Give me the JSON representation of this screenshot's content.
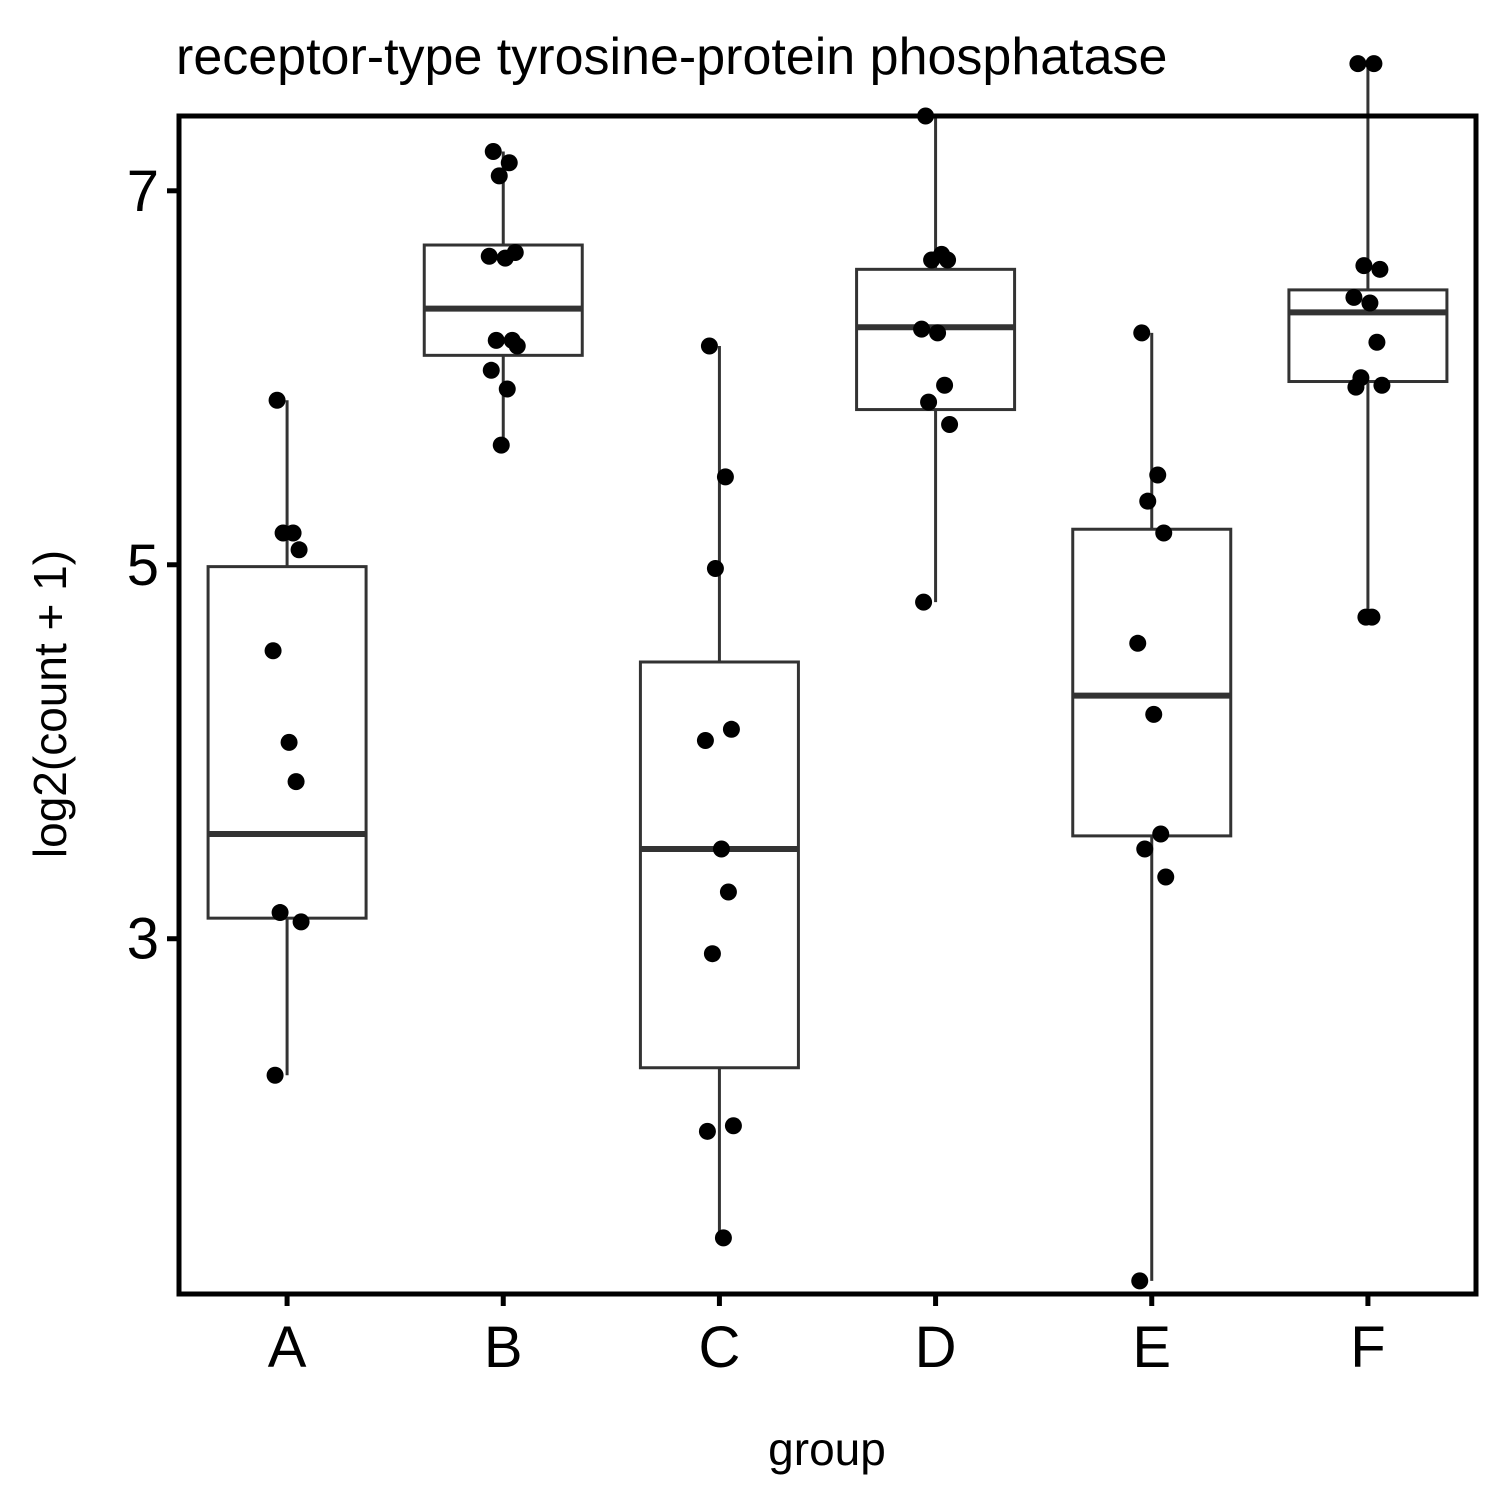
{
  "chart_data": {
    "type": "boxplot",
    "title": "receptor-type tyrosine-protein phosphatase",
    "xlabel": "group",
    "ylabel": "log2(count + 1)",
    "ylim": [
      1.1,
      7.4
    ],
    "yticks": [
      3,
      5,
      7
    ],
    "grid": false,
    "legend": "none",
    "categories": [
      "A",
      "B",
      "C",
      "D",
      "E",
      "F"
    ],
    "boxes": [
      {
        "group": "A",
        "lower_whisker": 2.27,
        "q1": 3.11,
        "median": 3.56,
        "q3": 4.99,
        "upper_whisker": 5.88
      },
      {
        "group": "B",
        "lower_whisker": 5.64,
        "q1": 6.12,
        "median": 6.37,
        "q3": 6.71,
        "upper_whisker": 7.21
      },
      {
        "group": "C",
        "lower_whisker": 1.4,
        "q1": 2.31,
        "median": 3.48,
        "q3": 4.48,
        "upper_whisker": 6.17
      },
      {
        "group": "D",
        "lower_whisker": 4.8,
        "q1": 5.83,
        "median": 6.27,
        "q3": 6.58,
        "upper_whisker": 7.4
      },
      {
        "group": "E",
        "lower_whisker": 1.17,
        "q1": 3.55,
        "median": 4.3,
        "q3": 5.19,
        "upper_whisker": 6.24
      },
      {
        "group": "F",
        "lower_whisker": 4.71,
        "q1": 5.98,
        "median": 6.35,
        "q3": 6.47,
        "upper_whisker": 7.68
      }
    ],
    "points": [
      {
        "group": "A",
        "values": [
          5.88,
          5.17,
          5.17,
          5.08,
          4.54,
          4.05,
          3.84,
          3.14,
          3.09,
          2.27
        ]
      },
      {
        "group": "B",
        "values": [
          7.21,
          7.15,
          7.08,
          6.67,
          6.65,
          6.64,
          6.2,
          6.2,
          6.17,
          6.04,
          5.94,
          5.64
        ]
      },
      {
        "group": "C",
        "values": [
          6.17,
          5.47,
          4.98,
          4.12,
          4.06,
          3.48,
          3.25,
          2.92,
          2.0,
          1.97,
          1.4
        ]
      },
      {
        "group": "D",
        "values": [
          7.4,
          6.66,
          6.63,
          6.63,
          6.26,
          6.24,
          5.96,
          5.87,
          5.75,
          4.8
        ]
      },
      {
        "group": "E",
        "values": [
          6.24,
          5.48,
          5.34,
          5.17,
          4.58,
          4.2,
          3.56,
          3.48,
          3.33,
          1.17
        ]
      },
      {
        "group": "F",
        "values": [
          7.68,
          7.68,
          6.6,
          6.58,
          6.43,
          6.4,
          6.19,
          6.0,
          5.96,
          5.95,
          4.72,
          4.72
        ]
      }
    ]
  }
}
